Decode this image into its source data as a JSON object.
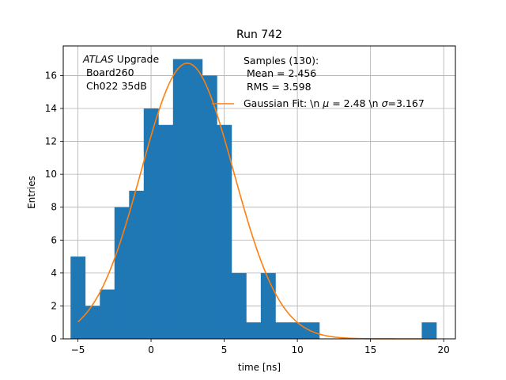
{
  "chart_data": {
    "type": "bar",
    "title": "Run 742",
    "xlabel": "time [ns]",
    "ylabel": "Entries",
    "xlim": [
      -6.0,
      20.8
    ],
    "ylim": [
      0,
      17.8
    ],
    "xticks": [
      "−5",
      "0",
      "5",
      "10",
      "15",
      "20"
    ],
    "xtick_values": [
      -5,
      0,
      5,
      10,
      15,
      20
    ],
    "yticks": [
      "0",
      "2",
      "4",
      "6",
      "8",
      "10",
      "12",
      "14",
      "16"
    ],
    "ytick_values": [
      0,
      2,
      4,
      6,
      8,
      10,
      12,
      14,
      16
    ],
    "grid": true,
    "hist_color": "#1f77b4",
    "fit_color": "#ff7f0e",
    "bins": [
      {
        "x0": -5.5,
        "x1": -4.5,
        "count": 5
      },
      {
        "x0": -4.5,
        "x1": -3.5,
        "count": 2
      },
      {
        "x0": -3.5,
        "x1": -2.5,
        "count": 3
      },
      {
        "x0": -2.5,
        "x1": -1.5,
        "count": 8
      },
      {
        "x0": -1.5,
        "x1": -0.5,
        "count": 9
      },
      {
        "x0": -0.5,
        "x1": 0.5,
        "count": 14
      },
      {
        "x0": 0.5,
        "x1": 1.5,
        "count": 13
      },
      {
        "x0": 1.5,
        "x1": 2.5,
        "count": 17
      },
      {
        "x0": 2.5,
        "x1": 3.5,
        "count": 17
      },
      {
        "x0": 3.5,
        "x1": 4.5,
        "count": 16
      },
      {
        "x0": 4.5,
        "x1": 5.5,
        "count": 13
      },
      {
        "x0": 5.5,
        "x1": 6.5,
        "count": 4
      },
      {
        "x0": 6.5,
        "x1": 7.5,
        "count": 1
      },
      {
        "x0": 7.5,
        "x1": 8.5,
        "count": 4
      },
      {
        "x0": 8.5,
        "x1": 9.5,
        "count": 1
      },
      {
        "x0": 9.5,
        "x1": 10.5,
        "count": 1
      },
      {
        "x0": 10.5,
        "x1": 11.5,
        "count": 1
      },
      {
        "x0": 11.5,
        "x1": 12.5,
        "count": 0
      },
      {
        "x0": 18.5,
        "x1": 19.5,
        "count": 1
      }
    ],
    "fit": {
      "label": "Gaussian Fit: \\n $\\mu$ = 2.48 \\n $\\sigma$=3.167",
      "mu": 2.48,
      "sigma": 3.167,
      "amplitude": 16.75,
      "x_range": [
        -5,
        19.5
      ]
    },
    "stats_box": {
      "line1": "Samples (130):",
      "line2": " Mean = 2.456",
      "line3": " RMS = 3.598"
    },
    "annotation": {
      "line1_italic": "ATLAS",
      "line1_rest": " Upgrade",
      "line2": " Board260",
      "line3": " Ch022 35dB"
    },
    "legend_entry": {
      "prefix": "Gaussian Fit: \\n ",
      "mu_sym": "μ",
      "mid": " = 2.48 \\n ",
      "sigma_sym": "σ",
      "suffix": "=3.167"
    }
  }
}
